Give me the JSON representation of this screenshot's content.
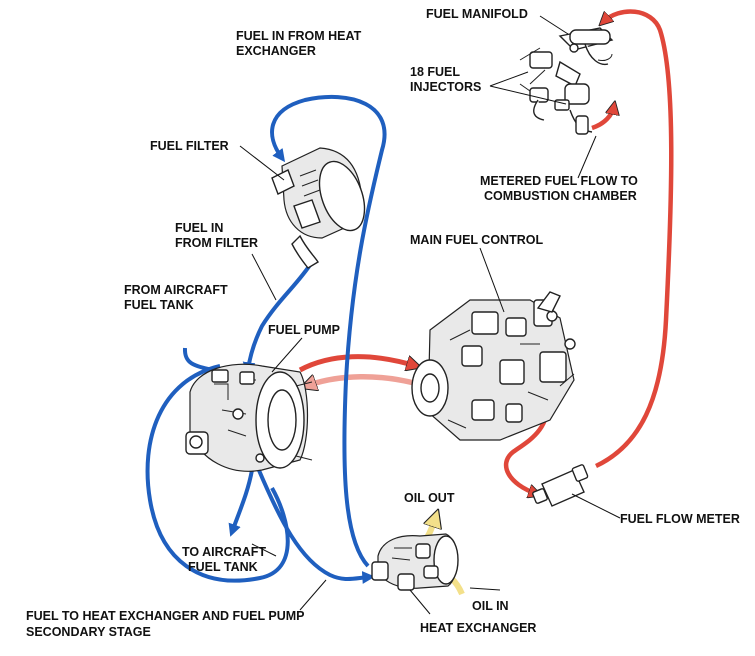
{
  "colors": {
    "fuel_supply_blue": "#1f5fbf",
    "metered_fuel_red": "#e0473a",
    "return_fuel_pink": "#efa197",
    "oil_yellow": "#f3e08a",
    "outline": "#222222"
  },
  "labels": {
    "fuel_manifold": "FUEL MANIFOLD",
    "fuel_injectors": [
      "18 FUEL",
      "INJECTORS"
    ],
    "fuel_in_from_heat_exchanger": [
      "FUEL IN FROM HEAT",
      "EXCHANGER"
    ],
    "fuel_filter": "FUEL FILTER",
    "fuel_in_from_filter": [
      "FUEL IN",
      "FROM FILTER"
    ],
    "metered_fuel_flow": [
      "METERED FUEL FLOW TO",
      "COMBUSTION CHAMBER"
    ],
    "main_fuel_control": "MAIN FUEL CONTROL",
    "from_aircraft_fuel_tank": [
      "FROM AIRCRAFT",
      "FUEL TANK"
    ],
    "fuel_pump": "FUEL PUMP",
    "fuel_flow_meter": "FUEL FLOW METER",
    "oil_out": "OIL OUT",
    "to_aircraft_fuel_tank": [
      "TO AIRCRAFT",
      "FUEL TANK"
    ],
    "oil_in": "OIL IN",
    "heat_exchanger": "HEAT EXCHANGER",
    "fuel_to_heat_exchanger": [
      "FUEL TO HEAT EXCHANGER AND FUEL PUMP",
      "SECONDARY STAGE"
    ]
  }
}
